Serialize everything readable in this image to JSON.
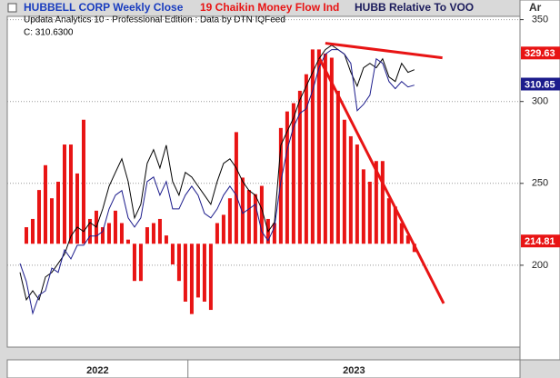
{
  "chart_data": {
    "type": "line",
    "subtitle": "Updata Analytics 10 - Professional Edition : Data by DTN IQFeed",
    "annotations": [
      "C: 310.6300"
    ],
    "y_axis_label": "Ar",
    "xlim": [
      0,
      80.6
    ],
    "ylim": [
      150,
      352
    ],
    "yticks": [
      200,
      250,
      300,
      350
    ],
    "y2lim": [
      -0.25,
      0.55
    ],
    "grid": true,
    "year_bands": [
      {
        "label": "2022",
        "start": 0,
        "end": 28.4
      },
      {
        "label": "2023",
        "start": 28.4,
        "end": 80.6
      }
    ],
    "series": [
      {
        "name": "HUBBELL CORP Weekly Close",
        "type": "line",
        "color": "#000000",
        "x": [
          2,
          3,
          4,
          5,
          6,
          7,
          8,
          9,
          10,
          11,
          12,
          13,
          14,
          15,
          16,
          17,
          18,
          19,
          20,
          21,
          22,
          23,
          24,
          25,
          26,
          27,
          28,
          29,
          30,
          31,
          32,
          33,
          34,
          35,
          36,
          37,
          38,
          39,
          40,
          41,
          42,
          43,
          44,
          45,
          46,
          47,
          48,
          49,
          50,
          51,
          52,
          53,
          54,
          55,
          56,
          57,
          58,
          59,
          60,
          61,
          62,
          63,
          64
        ],
        "values": [
          195.6,
          178.9,
          184.4,
          178.9,
          192.8,
          195.6,
          201.1,
          206.7,
          217.8,
          223.3,
          220.6,
          226.1,
          223.3,
          234.4,
          248.3,
          256.7,
          265,
          251.1,
          228.9,
          237.2,
          262.2,
          270.6,
          259.4,
          273.3,
          251.1,
          242.8,
          256.7,
          253.9,
          248.3,
          242.8,
          237.2,
          251.1,
          262.2,
          265,
          259.4,
          251.1,
          245.6,
          242.8,
          234.4,
          220.6,
          226.1,
          273.3,
          281.7,
          290,
          301.1,
          309.4,
          317.8,
          326.1,
          331.7,
          334.4,
          331.7,
          328.9,
          317.8,
          309.4,
          320.6,
          323.3,
          320.6,
          326.1,
          315,
          312.2,
          323.3,
          317.8,
          319.4
        ]
      },
      {
        "name": "19 Chaikin Money Flow Ind",
        "type": "bar",
        "axis": "y2",
        "color": "#e81414",
        "x": [
          3,
          4,
          5,
          6,
          7,
          8,
          9,
          10,
          11,
          12,
          13,
          14,
          15,
          16,
          17,
          18,
          19,
          20,
          21,
          22,
          23,
          24,
          25,
          26,
          27,
          28,
          29,
          30,
          31,
          32,
          33,
          34,
          35,
          36,
          37,
          38,
          39,
          40,
          41,
          42,
          43,
          44,
          45,
          46,
          47,
          48,
          49,
          50,
          51,
          52,
          53,
          54,
          55,
          56,
          57,
          58,
          59,
          60,
          61,
          62,
          63,
          64
        ],
        "values": [
          0.04,
          0.06,
          0.13,
          0.19,
          0.11,
          0.15,
          0.24,
          0.24,
          0.17,
          0.3,
          0.06,
          0.08,
          0.04,
          0.05,
          0.08,
          0.05,
          0.01,
          -0.09,
          -0.09,
          0.04,
          0.05,
          0.06,
          0.02,
          -0.05,
          -0.09,
          -0.14,
          -0.17,
          -0.13,
          -0.14,
          -0.16,
          0.05,
          0.07,
          0.11,
          0.27,
          0.16,
          0.13,
          0.12,
          0.14,
          0.06,
          0.05,
          0.28,
          0.32,
          0.34,
          0.37,
          0.41,
          0.47,
          0.47,
          0.46,
          0.45,
          0.37,
          0.3,
          0.26,
          0.24,
          0.18,
          0.15,
          0.2,
          0.2,
          0.11,
          0.09,
          0.05,
          0.02,
          -0.02
        ]
      },
      {
        "name": "HUBB Relative To VOO",
        "type": "line",
        "color": "#1c1c8c",
        "x": [
          2,
          3,
          4,
          5,
          6,
          7,
          8,
          9,
          10,
          11,
          12,
          13,
          14,
          15,
          16,
          17,
          18,
          19,
          20,
          21,
          22,
          23,
          24,
          25,
          26,
          27,
          28,
          29,
          30,
          31,
          32,
          33,
          34,
          35,
          36,
          37,
          38,
          39,
          40,
          41,
          42,
          43,
          44,
          45,
          46,
          47,
          48,
          49,
          50,
          51,
          52,
          53,
          54,
          55,
          56,
          57,
          58,
          59,
          60,
          61,
          62,
          63,
          64
        ],
        "values": [
          201.1,
          190,
          170.6,
          181.7,
          184.4,
          198.3,
          195.6,
          209.4,
          203.9,
          212.2,
          212.2,
          217.8,
          217.8,
          220.6,
          234.4,
          242.8,
          245.6,
          228.9,
          223.3,
          228.9,
          251.1,
          253.9,
          242.8,
          251.1,
          234.4,
          234.4,
          242.8,
          248.3,
          242.8,
          231.7,
          228.9,
          234.4,
          242.8,
          248.3,
          242.8,
          231.7,
          234.4,
          237.2,
          220.6,
          215,
          223.3,
          251.1,
          270.6,
          284.4,
          292.8,
          295.6,
          306.7,
          320.6,
          328.9,
          331.7,
          331.7,
          328.9,
          323.3,
          294.4,
          298.3,
          303.9,
          326.1,
          323.3,
          312.2,
          307.8,
          312.2,
          308.9,
          310
        ]
      }
    ],
    "trendlines": [
      {
        "color": "#e81414",
        "x": [
          50,
          68.4
        ],
        "y": [
          335.6,
          326.7
        ]
      },
      {
        "color": "#e81414",
        "x": [
          49.1,
          68.6
        ],
        "y": [
          326.1,
          176.7
        ]
      }
    ],
    "value_tags": [
      {
        "label": "329.63",
        "value": 329.63,
        "color": "#e81414"
      },
      {
        "label": "310.65",
        "value": 310.65,
        "color": "#1c1c8c"
      },
      {
        "label": "214.81",
        "value": 214.81,
        "color": "#e81414"
      }
    ]
  }
}
